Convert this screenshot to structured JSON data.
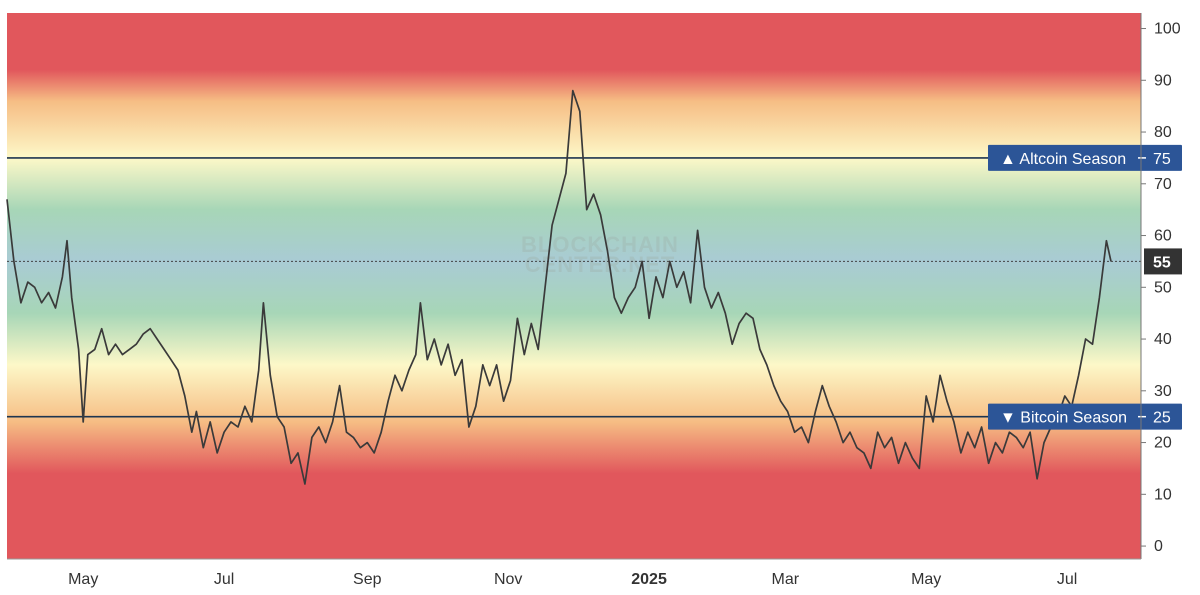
{
  "watermark": [
    "BLOCKCHAIN",
    "CENTER.NET"
  ],
  "colors": {
    "line": "#3a3a3a",
    "threshold_line": "#1e3550",
    "tag_bg": "#2c5597",
    "current_tag_bg": "#333333",
    "band_red": "#e1575c",
    "band_orange": "#f6bd84",
    "band_yellow": "#fdf8c8",
    "band_green": "#a7d6b7",
    "band_blue": "#a9cbd4"
  },
  "chart_data": {
    "type": "line",
    "title": "",
    "xlabel": "",
    "ylabel": "",
    "ylim": [
      -2.5,
      103
    ],
    "xlim": [
      "2024-03-29",
      "2025-08-02"
    ],
    "y_ticks": [
      0,
      10,
      20,
      30,
      40,
      50,
      60,
      70,
      80,
      90,
      100
    ],
    "x_ticks": [
      {
        "label": "May",
        "date": "2024-05-01",
        "bold": false
      },
      {
        "label": "Jul",
        "date": "2024-07-01",
        "bold": false
      },
      {
        "label": "Sep",
        "date": "2024-09-01",
        "bold": false
      },
      {
        "label": "Nov",
        "date": "2024-11-01",
        "bold": false
      },
      {
        "label": "2025",
        "date": "2025-01-01",
        "bold": true
      },
      {
        "label": "Mar",
        "date": "2025-03-01",
        "bold": false
      },
      {
        "label": "May",
        "date": "2025-05-01",
        "bold": false
      },
      {
        "label": "Jul",
        "date": "2025-07-01",
        "bold": false
      }
    ],
    "thresholds": [
      {
        "label": "▲ Altcoin Season",
        "value": 75
      },
      {
        "label": "▼ Bitcoin Season",
        "value": 25
      }
    ],
    "current_value": 55,
    "series": [
      {
        "points": [
          [
            "2024-03-29",
            67
          ],
          [
            "2024-04-01",
            55
          ],
          [
            "2024-04-04",
            47
          ],
          [
            "2024-04-07",
            51
          ],
          [
            "2024-04-10",
            50
          ],
          [
            "2024-04-13",
            47
          ],
          [
            "2024-04-16",
            49
          ],
          [
            "2024-04-19",
            46
          ],
          [
            "2024-04-22",
            52
          ],
          [
            "2024-04-24",
            59
          ],
          [
            "2024-04-26",
            48
          ],
          [
            "2024-04-29",
            38
          ],
          [
            "2024-05-01",
            24
          ],
          [
            "2024-05-03",
            37
          ],
          [
            "2024-05-06",
            38
          ],
          [
            "2024-05-09",
            42
          ],
          [
            "2024-05-12",
            37
          ],
          [
            "2024-05-15",
            39
          ],
          [
            "2024-05-18",
            37
          ],
          [
            "2024-05-21",
            38
          ],
          [
            "2024-05-24",
            39
          ],
          [
            "2024-05-27",
            41
          ],
          [
            "2024-05-30",
            42
          ],
          [
            "2024-06-02",
            40
          ],
          [
            "2024-06-05",
            38
          ],
          [
            "2024-06-08",
            36
          ],
          [
            "2024-06-11",
            34
          ],
          [
            "2024-06-14",
            29
          ],
          [
            "2024-06-17",
            22
          ],
          [
            "2024-06-19",
            26
          ],
          [
            "2024-06-22",
            19
          ],
          [
            "2024-06-25",
            24
          ],
          [
            "2024-06-28",
            18
          ],
          [
            "2024-07-01",
            22
          ],
          [
            "2024-07-04",
            24
          ],
          [
            "2024-07-07",
            23
          ],
          [
            "2024-07-10",
            27
          ],
          [
            "2024-07-13",
            24
          ],
          [
            "2024-07-16",
            34
          ],
          [
            "2024-07-18",
            47
          ],
          [
            "2024-07-21",
            33
          ],
          [
            "2024-07-24",
            25
          ],
          [
            "2024-07-27",
            23
          ],
          [
            "2024-07-30",
            16
          ],
          [
            "2024-08-02",
            18
          ],
          [
            "2024-08-05",
            12
          ],
          [
            "2024-08-08",
            21
          ],
          [
            "2024-08-11",
            23
          ],
          [
            "2024-08-14",
            20
          ],
          [
            "2024-08-17",
            24
          ],
          [
            "2024-08-20",
            31
          ],
          [
            "2024-08-23",
            22
          ],
          [
            "2024-08-26",
            21
          ],
          [
            "2024-08-29",
            19
          ],
          [
            "2024-09-01",
            20
          ],
          [
            "2024-09-04",
            18
          ],
          [
            "2024-09-07",
            22
          ],
          [
            "2024-09-10",
            28
          ],
          [
            "2024-09-13",
            33
          ],
          [
            "2024-09-16",
            30
          ],
          [
            "2024-09-19",
            34
          ],
          [
            "2024-09-22",
            37
          ],
          [
            "2024-09-24",
            47
          ],
          [
            "2024-09-27",
            36
          ],
          [
            "2024-09-30",
            40
          ],
          [
            "2024-10-03",
            35
          ],
          [
            "2024-10-06",
            39
          ],
          [
            "2024-10-09",
            33
          ],
          [
            "2024-10-12",
            36
          ],
          [
            "2024-10-15",
            23
          ],
          [
            "2024-10-18",
            27
          ],
          [
            "2024-10-21",
            35
          ],
          [
            "2024-10-24",
            31
          ],
          [
            "2024-10-27",
            35
          ],
          [
            "2024-10-30",
            28
          ],
          [
            "2024-11-02",
            32
          ],
          [
            "2024-11-05",
            44
          ],
          [
            "2024-11-08",
            37
          ],
          [
            "2024-11-11",
            43
          ],
          [
            "2024-11-14",
            38
          ],
          [
            "2024-11-17",
            50
          ],
          [
            "2024-11-20",
            62
          ],
          [
            "2024-11-23",
            67
          ],
          [
            "2024-11-26",
            72
          ],
          [
            "2024-11-29",
            88
          ],
          [
            "2024-12-02",
            84
          ],
          [
            "2024-12-05",
            65
          ],
          [
            "2024-12-08",
            68
          ],
          [
            "2024-12-11",
            64
          ],
          [
            "2024-12-14",
            57
          ],
          [
            "2024-12-17",
            48
          ],
          [
            "2024-12-20",
            45
          ],
          [
            "2024-12-23",
            48
          ],
          [
            "2024-12-26",
            50
          ],
          [
            "2024-12-29",
            55
          ],
          [
            "2025-01-01",
            44
          ],
          [
            "2025-01-04",
            52
          ],
          [
            "2025-01-07",
            48
          ],
          [
            "2025-01-10",
            55
          ],
          [
            "2025-01-13",
            50
          ],
          [
            "2025-01-16",
            53
          ],
          [
            "2025-01-19",
            47
          ],
          [
            "2025-01-22",
            61
          ],
          [
            "2025-01-25",
            50
          ],
          [
            "2025-01-28",
            46
          ],
          [
            "2025-01-31",
            49
          ],
          [
            "2025-02-03",
            45
          ],
          [
            "2025-02-06",
            39
          ],
          [
            "2025-02-09",
            43
          ],
          [
            "2025-02-12",
            45
          ],
          [
            "2025-02-15",
            44
          ],
          [
            "2025-02-18",
            38
          ],
          [
            "2025-02-21",
            35
          ],
          [
            "2025-02-24",
            31
          ],
          [
            "2025-02-27",
            28
          ],
          [
            "2025-03-02",
            26
          ],
          [
            "2025-03-05",
            22
          ],
          [
            "2025-03-08",
            23
          ],
          [
            "2025-03-11",
            20
          ],
          [
            "2025-03-14",
            26
          ],
          [
            "2025-03-17",
            31
          ],
          [
            "2025-03-20",
            27
          ],
          [
            "2025-03-23",
            24
          ],
          [
            "2025-03-26",
            20
          ],
          [
            "2025-03-29",
            22
          ],
          [
            "2025-04-01",
            19
          ],
          [
            "2025-04-04",
            18
          ],
          [
            "2025-04-07",
            15
          ],
          [
            "2025-04-10",
            22
          ],
          [
            "2025-04-13",
            19
          ],
          [
            "2025-04-16",
            21
          ],
          [
            "2025-04-19",
            16
          ],
          [
            "2025-04-22",
            20
          ],
          [
            "2025-04-25",
            17
          ],
          [
            "2025-04-28",
            15
          ],
          [
            "2025-05-01",
            29
          ],
          [
            "2025-05-04",
            24
          ],
          [
            "2025-05-07",
            33
          ],
          [
            "2025-05-10",
            28
          ],
          [
            "2025-05-13",
            24
          ],
          [
            "2025-05-16",
            18
          ],
          [
            "2025-05-19",
            22
          ],
          [
            "2025-05-22",
            19
          ],
          [
            "2025-05-25",
            23
          ],
          [
            "2025-05-28",
            16
          ],
          [
            "2025-05-31",
            20
          ],
          [
            "2025-06-03",
            18
          ],
          [
            "2025-06-06",
            22
          ],
          [
            "2025-06-09",
            21
          ],
          [
            "2025-06-12",
            19
          ],
          [
            "2025-06-15",
            22
          ],
          [
            "2025-06-18",
            13
          ],
          [
            "2025-06-21",
            20
          ],
          [
            "2025-06-24",
            23
          ],
          [
            "2025-06-27",
            25
          ],
          [
            "2025-06-30",
            29
          ],
          [
            "2025-07-03",
            27
          ],
          [
            "2025-07-06",
            33
          ],
          [
            "2025-07-09",
            40
          ],
          [
            "2025-07-12",
            39
          ],
          [
            "2025-07-15",
            48
          ],
          [
            "2025-07-18",
            59
          ],
          [
            "2025-07-20",
            55
          ]
        ]
      }
    ]
  }
}
